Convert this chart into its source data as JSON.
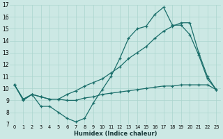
{
  "xlabel": "Humidex (Indice chaleur)",
  "bg_color": "#cce8e4",
  "grid_color": "#aad4ce",
  "line_color": "#1a6e6a",
  "xlim": [
    -0.5,
    23.5
  ],
  "ylim": [
    7,
    17
  ],
  "xticks": [
    0,
    1,
    2,
    3,
    4,
    5,
    6,
    7,
    8,
    9,
    10,
    11,
    12,
    13,
    14,
    15,
    16,
    17,
    18,
    19,
    20,
    21,
    22,
    23
  ],
  "yticks": [
    7,
    8,
    9,
    10,
    11,
    12,
    13,
    14,
    15,
    16,
    17
  ],
  "line1_x": [
    0,
    1,
    2,
    3,
    4,
    5,
    6,
    7,
    8,
    9,
    10,
    11,
    12,
    13,
    14,
    15,
    16,
    17,
    18,
    19,
    20,
    21,
    22,
    23
  ],
  "line1_y": [
    10.3,
    9.0,
    9.5,
    8.5,
    8.5,
    8.0,
    7.5,
    7.2,
    7.5,
    8.8,
    9.9,
    11.0,
    12.5,
    14.2,
    15.0,
    15.2,
    16.2,
    16.8,
    15.3,
    15.3,
    14.5,
    12.8,
    10.8,
    9.9
  ],
  "line2_x": [
    0,
    1,
    2,
    3,
    4,
    5,
    6,
    7,
    8,
    9,
    10,
    11,
    12,
    13,
    14,
    15,
    16,
    17,
    18,
    19,
    20,
    21,
    22,
    23
  ],
  "line2_y": [
    10.3,
    9.1,
    9.5,
    9.3,
    9.1,
    9.1,
    9.0,
    9.0,
    9.2,
    9.3,
    9.5,
    9.6,
    9.7,
    9.8,
    9.9,
    10.0,
    10.1,
    10.2,
    10.2,
    10.3,
    10.3,
    10.3,
    10.3,
    9.9
  ],
  "line3_x": [
    0,
    1,
    2,
    3,
    4,
    5,
    6,
    7,
    8,
    9,
    10,
    11,
    12,
    13,
    14,
    15,
    16,
    17,
    18,
    19,
    20,
    21,
    22,
    23
  ],
  "line3_y": [
    10.3,
    9.1,
    9.5,
    9.3,
    9.1,
    9.1,
    9.5,
    9.8,
    10.2,
    10.5,
    10.8,
    11.3,
    11.8,
    12.5,
    13.0,
    13.5,
    14.2,
    14.8,
    15.2,
    15.5,
    15.5,
    13.0,
    11.0,
    9.9
  ]
}
